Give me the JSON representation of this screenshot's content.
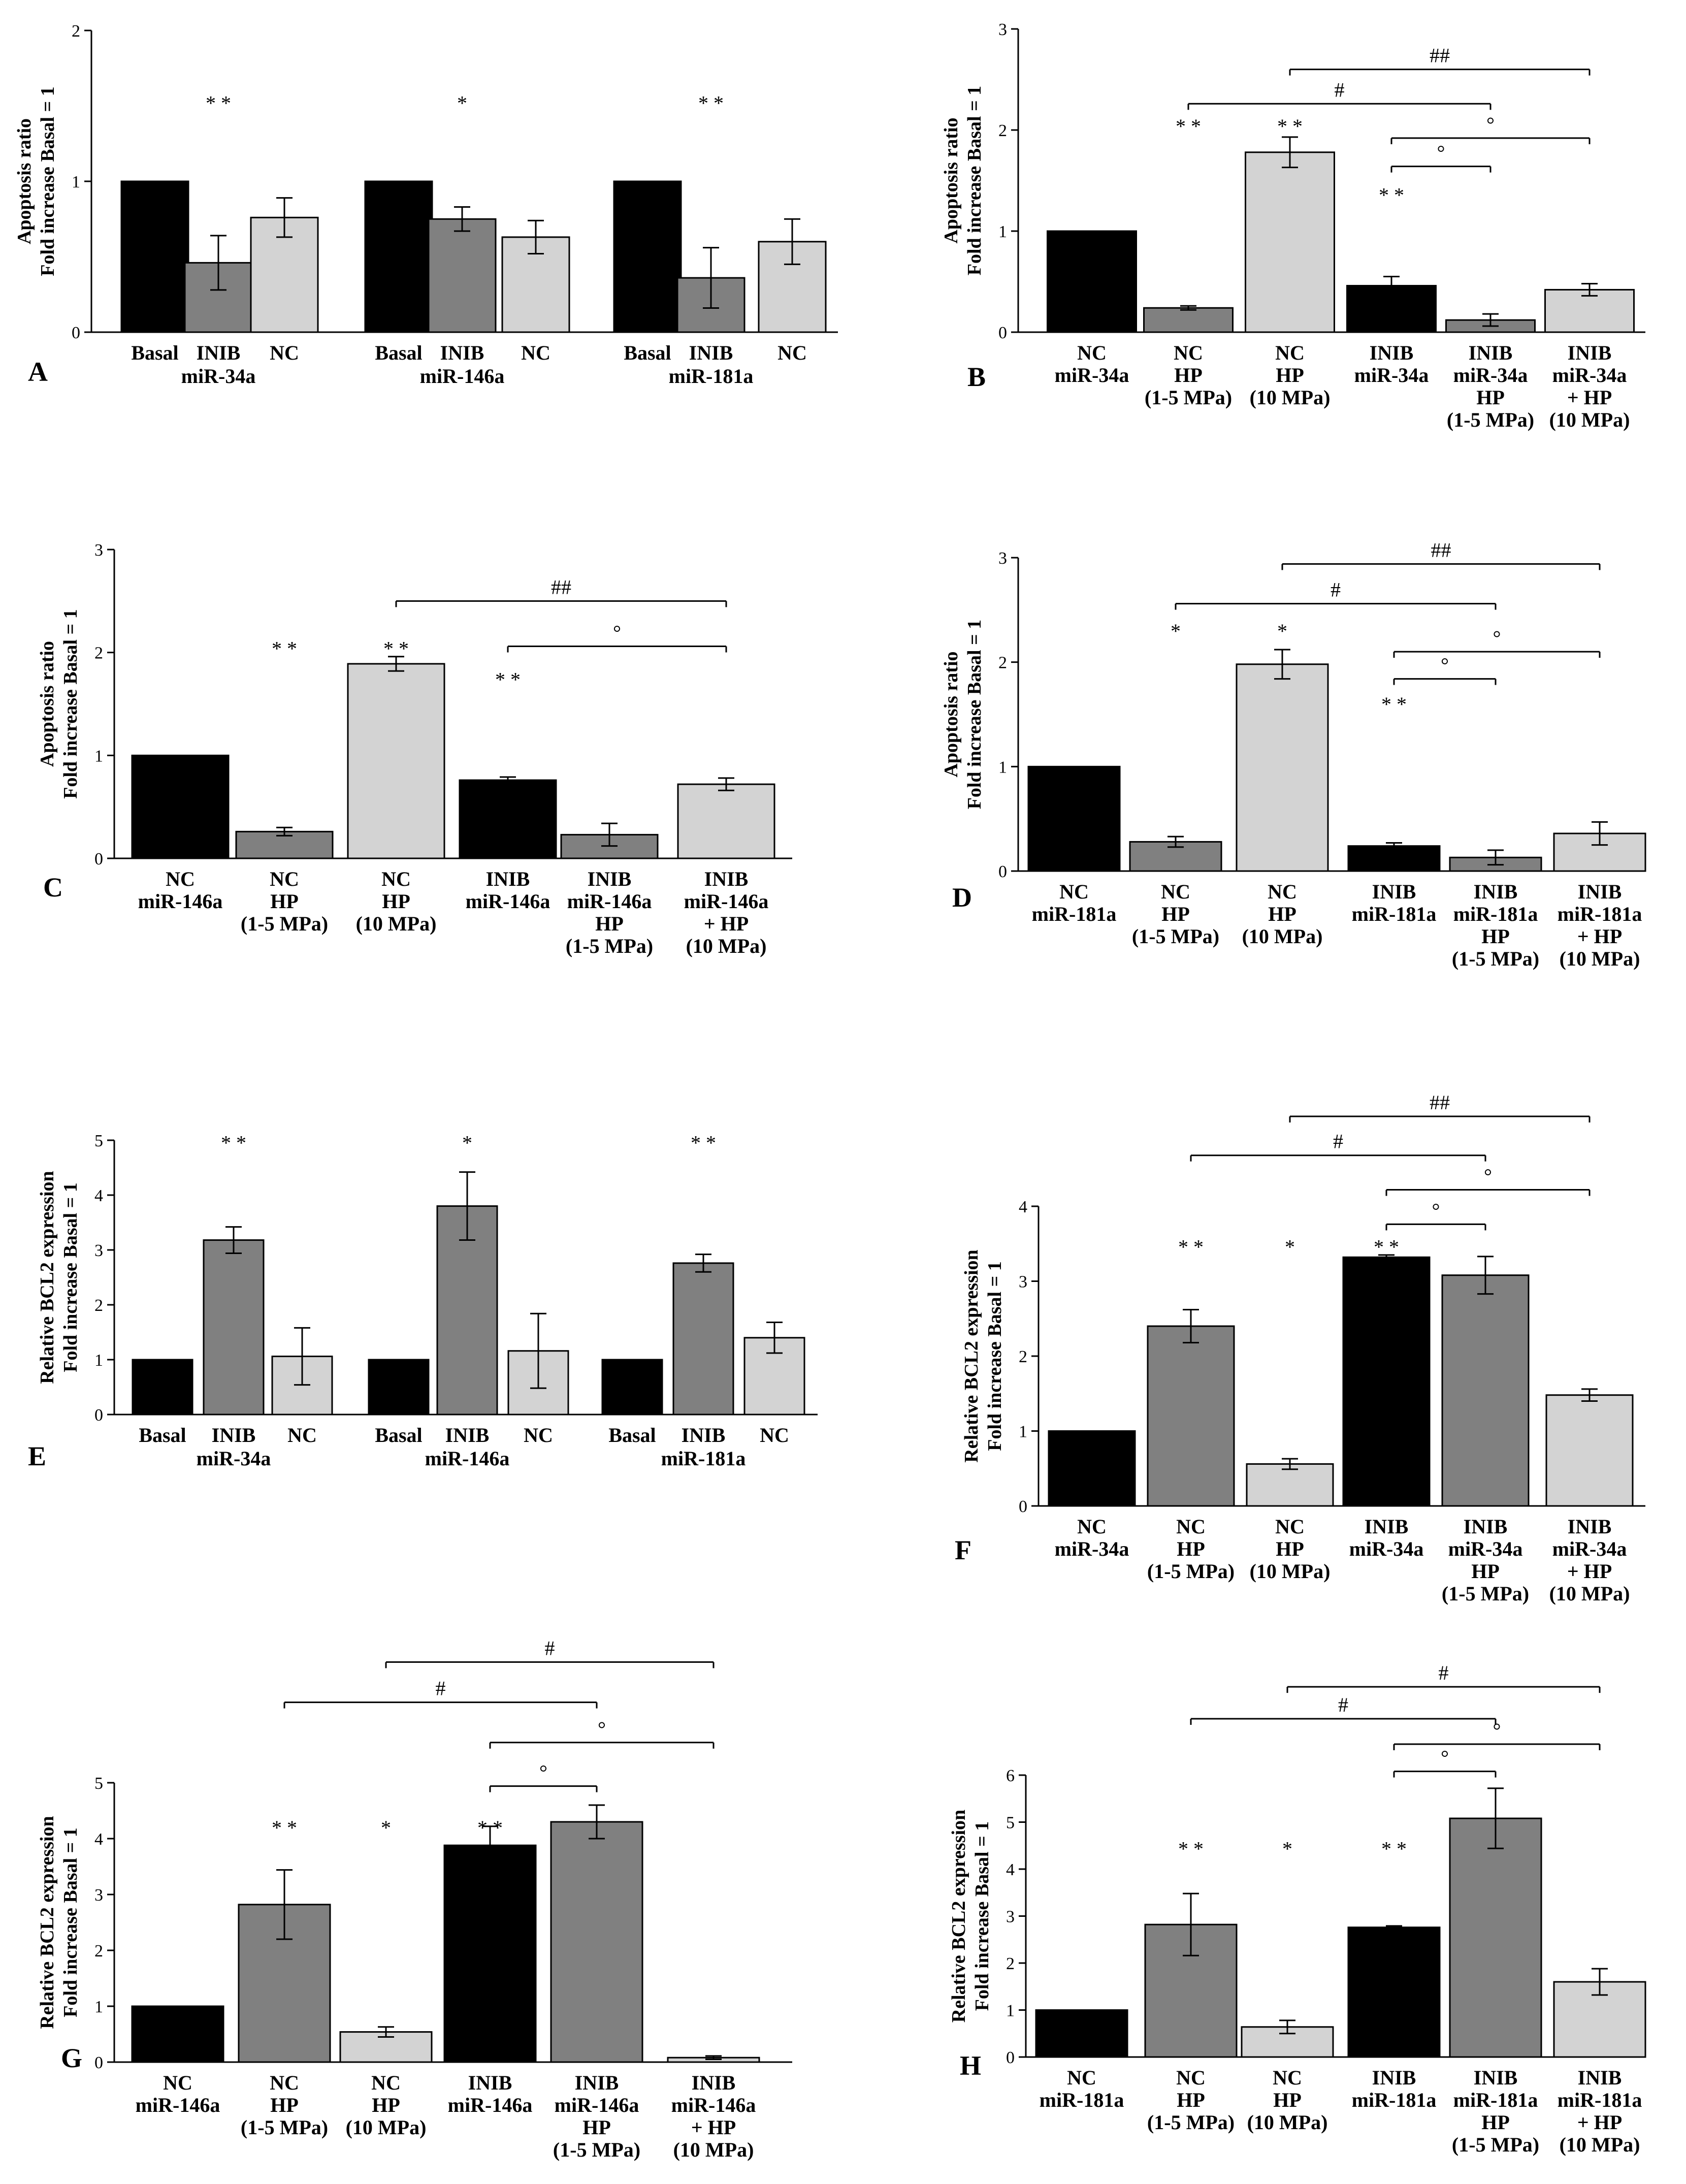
{
  "colors": {
    "black": "#000000",
    "dark_gray": "#808080",
    "light_gray": "#d3d3d3"
  },
  "chart_data": [
    {
      "type": "bar",
      "panel": "A",
      "ylabel_lines": [
        "Apoptosis ratio",
        "Fold increase Basal = 1"
      ],
      "ylim": [
        0,
        2
      ],
      "yticks": [
        0,
        1,
        2
      ],
      "bars": [
        {
          "value": 1.0,
          "error": 0,
          "color": "black",
          "label": [
            "Basal"
          ]
        },
        {
          "value": 0.46,
          "error": 0.18,
          "color": "dark_gray",
          "label": [
            "INIB"
          ]
        },
        {
          "value": 0.76,
          "error": 0.13,
          "color": "light_gray",
          "label": [
            "NC"
          ]
        },
        {
          "value": 1.0,
          "error": 0,
          "color": "black",
          "label": [
            "Basal"
          ]
        },
        {
          "value": 0.75,
          "error": 0.08,
          "color": "dark_gray",
          "label": [
            "INIB"
          ]
        },
        {
          "value": 0.63,
          "error": 0.11,
          "color": "light_gray",
          "label": [
            "NC"
          ]
        },
        {
          "value": 1.0,
          "error": 0,
          "color": "black",
          "label": [
            "Basal"
          ]
        },
        {
          "value": 0.36,
          "error": 0.2,
          "color": "dark_gray",
          "label": [
            "INIB"
          ]
        },
        {
          "value": 0.6,
          "error": 0.15,
          "color": "light_gray",
          "label": [
            "NC"
          ]
        }
      ],
      "group_labels": [
        {
          "text": "miR-34a",
          "bar": 1
        },
        {
          "text": "miR-146a",
          "bar": 4
        },
        {
          "text": "miR-181a",
          "bar": 7
        }
      ],
      "significance": [
        {
          "bar": 1,
          "y": 1.52,
          "text": "* *"
        },
        {
          "bar": 4,
          "y": 1.52,
          "text": "*"
        },
        {
          "bar": 7,
          "y": 1.52,
          "text": "* *"
        }
      ],
      "brackets": []
    },
    {
      "type": "bar",
      "panel": "B",
      "ylabel_lines": [
        "Apoptosis ratio",
        "Fold increase Basal = 1"
      ],
      "ylim": [
        0,
        3
      ],
      "yticks": [
        0,
        1,
        2,
        3
      ],
      "bars": [
        {
          "value": 1.0,
          "error": 0,
          "color": "black",
          "label": [
            "NC",
            "miR-34a"
          ]
        },
        {
          "value": 0.24,
          "error": 0.02,
          "color": "dark_gray",
          "label": [
            "NC",
            "HP",
            "(1-5 MPa)"
          ]
        },
        {
          "value": 1.78,
          "error": 0.15,
          "color": "light_gray",
          "label": [
            "NC",
            "HP",
            "(10 MPa)"
          ]
        },
        {
          "value": 0.46,
          "error": 0.09,
          "color": "black",
          "label": [
            "INIB",
            "miR-34a"
          ]
        },
        {
          "value": 0.12,
          "error": 0.06,
          "color": "dark_gray",
          "label": [
            "INIB",
            "miR-34a",
            "HP",
            "(1-5 MPa)"
          ]
        },
        {
          "value": 0.42,
          "error": 0.06,
          "color": "light_gray",
          "label": [
            "INIB",
            "miR-34a",
            "+ HP",
            "(10 MPa)"
          ]
        }
      ],
      "group_labels": [],
      "significance": [
        {
          "bar": 1,
          "y": 2.04,
          "text": "* *"
        },
        {
          "bar": 2,
          "y": 2.04,
          "text": "* *"
        },
        {
          "bar": 3,
          "y": 1.36,
          "text": "* *"
        }
      ],
      "brackets": [
        {
          "from": 1,
          "to": 4,
          "y": 2.26,
          "text": "#"
        },
        {
          "from": 2,
          "to": 5,
          "y": 2.6,
          "text": "##"
        },
        {
          "from": 3,
          "to": 4,
          "y": 1.64,
          "text": "°"
        },
        {
          "from": 3,
          "to": 5,
          "y": 1.92,
          "text": "°"
        }
      ]
    },
    {
      "type": "bar",
      "panel": "C",
      "ylabel_lines": [
        "Apoptosis ratio",
        "Fold increase Basal = 1"
      ],
      "ylim": [
        0,
        3
      ],
      "yticks": [
        0,
        1,
        2,
        3
      ],
      "bars": [
        {
          "value": 1.0,
          "error": 0,
          "color": "black",
          "label": [
            "NC",
            "miR-146a"
          ]
        },
        {
          "value": 0.26,
          "error": 0.04,
          "color": "dark_gray",
          "label": [
            "NC",
            "HP",
            "(1-5 MPa)"
          ]
        },
        {
          "value": 1.89,
          "error": 0.07,
          "color": "light_gray",
          "label": [
            "NC",
            "HP",
            "(10 MPa)"
          ]
        },
        {
          "value": 0.76,
          "error": 0.03,
          "color": "black",
          "label": [
            "INIB",
            "miR-146a"
          ]
        },
        {
          "value": 0.23,
          "error": 0.11,
          "color": "dark_gray",
          "label": [
            "INIB",
            "miR-146a",
            "HP",
            "(1-5 MPa)"
          ]
        },
        {
          "value": 0.72,
          "error": 0.06,
          "color": "light_gray",
          "label": [
            "INIB",
            "miR-146a",
            "+ HP",
            "(10 MPa)"
          ]
        }
      ],
      "group_labels": [],
      "significance": [
        {
          "bar": 1,
          "y": 2.04,
          "text": "* *"
        },
        {
          "bar": 2,
          "y": 2.04,
          "text": "* *"
        },
        {
          "bar": 3,
          "y": 1.74,
          "text": "* *"
        }
      ],
      "brackets": [
        {
          "from": 3,
          "to": 5,
          "y": 2.06,
          "text": "°"
        },
        {
          "from": 2,
          "to": 5,
          "y": 2.5,
          "text": "##"
        }
      ]
    },
    {
      "type": "bar",
      "panel": "D",
      "ylabel_lines": [
        "Apoptosis ratio",
        "Fold increase Basal = 1"
      ],
      "ylim": [
        0,
        3
      ],
      "yticks": [
        0,
        1,
        2,
        3
      ],
      "bars": [
        {
          "value": 1.0,
          "error": 0,
          "color": "black",
          "label": [
            "NC",
            "miR-181a"
          ]
        },
        {
          "value": 0.28,
          "error": 0.05,
          "color": "dark_gray",
          "label": [
            "NC",
            "HP",
            "(1-5 MPa)"
          ]
        },
        {
          "value": 1.98,
          "error": 0.14,
          "color": "light_gray",
          "label": [
            "NC",
            "HP",
            "(10 MPa)"
          ]
        },
        {
          "value": 0.24,
          "error": 0.03,
          "color": "black",
          "label": [
            "INIB",
            "miR-181a"
          ]
        },
        {
          "value": 0.13,
          "error": 0.07,
          "color": "dark_gray",
          "label": [
            "INIB",
            "miR-181a",
            "HP",
            "(1-5 MPa)"
          ]
        },
        {
          "value": 0.36,
          "error": 0.11,
          "color": "light_gray",
          "label": [
            "INIB",
            "miR-181a",
            "+ HP",
            "(10 MPa)"
          ]
        }
      ],
      "group_labels": [],
      "significance": [
        {
          "bar": 1,
          "y": 2.3,
          "text": "*"
        },
        {
          "bar": 2,
          "y": 2.3,
          "text": "*"
        },
        {
          "bar": 3,
          "y": 1.6,
          "text": "* *"
        }
      ],
      "brackets": [
        {
          "from": 1,
          "to": 4,
          "y": 2.56,
          "text": "#"
        },
        {
          "from": 2,
          "to": 5,
          "y": 2.94,
          "text": "##"
        },
        {
          "from": 3,
          "to": 4,
          "y": 1.84,
          "text": "°"
        },
        {
          "from": 3,
          "to": 5,
          "y": 2.1,
          "text": "°"
        }
      ]
    },
    {
      "type": "bar",
      "panel": "E",
      "ylabel_lines": [
        "Relative BCL2 expression",
        "Fold increase Basal = 1"
      ],
      "ylim": [
        0,
        5
      ],
      "yticks": [
        0,
        1,
        2,
        3,
        4,
        5
      ],
      "bars": [
        {
          "value": 1.0,
          "error": 0,
          "color": "black",
          "label": [
            "Basal"
          ]
        },
        {
          "value": 3.18,
          "error": 0.24,
          "color": "dark_gray",
          "label": [
            "INIB"
          ]
        },
        {
          "value": 1.06,
          "error": 0.52,
          "color": "light_gray",
          "label": [
            "NC"
          ]
        },
        {
          "value": 1.0,
          "error": 0,
          "color": "black",
          "label": [
            "Basal"
          ]
        },
        {
          "value": 3.8,
          "error": 0.62,
          "color": "dark_gray",
          "label": [
            "INIB"
          ]
        },
        {
          "value": 1.16,
          "error": 0.68,
          "color": "light_gray",
          "label": [
            "NC"
          ]
        },
        {
          "value": 1.0,
          "error": 0,
          "color": "black",
          "label": [
            "Basal"
          ]
        },
        {
          "value": 2.76,
          "error": 0.16,
          "color": "dark_gray",
          "label": [
            "INIB"
          ]
        },
        {
          "value": 1.4,
          "error": 0.28,
          "color": "light_gray",
          "label": [
            "NC"
          ]
        }
      ],
      "group_labels": [
        {
          "text": "miR-34a",
          "bar": 1
        },
        {
          "text": "miR-146a",
          "bar": 4
        },
        {
          "text": "miR-181a",
          "bar": 7
        }
      ],
      "significance": [
        {
          "bar": 1,
          "y": 4.96,
          "text": "* *"
        },
        {
          "bar": 4,
          "y": 4.96,
          "text": "*"
        },
        {
          "bar": 7,
          "y": 4.96,
          "text": "* *"
        }
      ],
      "brackets": []
    },
    {
      "type": "bar",
      "panel": "F",
      "ylabel_lines": [
        "Relative BCL2 expression",
        "Fold increase Basal = 1"
      ],
      "ylim": [
        0,
        4
      ],
      "yticks": [
        0,
        1,
        2,
        3,
        4
      ],
      "bars": [
        {
          "value": 1.0,
          "error": 0,
          "color": "black",
          "label": [
            "NC",
            "miR-34a"
          ]
        },
        {
          "value": 2.4,
          "error": 0.22,
          "color": "dark_gray",
          "label": [
            "NC",
            "HP",
            "(1-5 MPa)"
          ]
        },
        {
          "value": 0.56,
          "error": 0.07,
          "color": "light_gray",
          "label": [
            "NC",
            "HP",
            "(10 MPa)"
          ]
        },
        {
          "value": 3.32,
          "error": 0.03,
          "color": "black",
          "label": [
            "INIB",
            "miR-34a"
          ]
        },
        {
          "value": 3.08,
          "error": 0.25,
          "color": "dark_gray",
          "label": [
            "INIB",
            "miR-34a",
            "HP",
            "(1-5 MPa)"
          ]
        },
        {
          "value": 1.48,
          "error": 0.08,
          "color": "light_gray",
          "label": [
            "INIB",
            "miR-34a",
            "+ HP",
            "(10 MPa)"
          ]
        }
      ],
      "group_labels": [],
      "significance": [
        {
          "bar": 1,
          "y": 3.46,
          "text": "* *"
        },
        {
          "bar": 2,
          "y": 3.46,
          "text": "*"
        },
        {
          "bar": 3,
          "y": 3.46,
          "text": "* *"
        }
      ],
      "brackets": [
        {
          "from": 3,
          "to": 4,
          "y": 3.76,
          "text": "°"
        },
        {
          "from": 3,
          "to": 5,
          "y": 4.22,
          "text": "°"
        },
        {
          "from": 1,
          "to": 4,
          "y": 4.68,
          "text": "#"
        },
        {
          "from": 2,
          "to": 5,
          "y": 5.2,
          "text": "##"
        }
      ]
    },
    {
      "type": "bar",
      "panel": "G",
      "ylabel_lines": [
        "Relative BCL2 expression",
        "Fold increase Basal = 1"
      ],
      "ylim": [
        0,
        5
      ],
      "yticks": [
        0,
        1,
        2,
        3,
        4,
        5
      ],
      "bars": [
        {
          "value": 1.0,
          "error": 0,
          "color": "black",
          "label": [
            "NC",
            "miR-146a"
          ]
        },
        {
          "value": 2.82,
          "error": 0.62,
          "color": "dark_gray",
          "label": [
            "NC",
            "HP",
            "(1-5 MPa)"
          ]
        },
        {
          "value": 0.54,
          "error": 0.09,
          "color": "light_gray",
          "label": [
            "NC",
            "HP",
            "(10 MPa)"
          ]
        },
        {
          "value": 3.88,
          "error": 0.34,
          "color": "black",
          "label": [
            "INIB",
            "miR-146a"
          ]
        },
        {
          "value": 4.3,
          "error": 0.3,
          "color": "dark_gray",
          "label": [
            "INIB",
            "miR-146a",
            "HP",
            "(1-5 MPa)"
          ]
        },
        {
          "value": 0.08,
          "error": 0.03,
          "color": "light_gray",
          "label": [
            "INIB",
            "miR-146a",
            "+ HP",
            "(10 MPa)"
          ]
        }
      ],
      "group_labels": [],
      "significance": [
        {
          "bar": 1,
          "y": 4.2,
          "text": "* *"
        },
        {
          "bar": 2,
          "y": 4.2,
          "text": "*"
        },
        {
          "bar": 3,
          "y": 4.2,
          "text": "* *"
        }
      ],
      "brackets": [
        {
          "from": 3,
          "to": 4,
          "y": 4.94,
          "text": "°"
        },
        {
          "from": 3,
          "to": 5,
          "y": 5.72,
          "text": "°"
        },
        {
          "from": 1,
          "to": 4,
          "y": 6.44,
          "text": "#"
        },
        {
          "from": 2,
          "to": 5,
          "y": 7.16,
          "text": "#"
        }
      ]
    },
    {
      "type": "bar",
      "panel": "H",
      "ylabel_lines": [
        "Relative BCL2 expression",
        "Fold increase Basal = 1"
      ],
      "ylim": [
        0,
        6
      ],
      "yticks": [
        0,
        1,
        2,
        3,
        4,
        5,
        6
      ],
      "bars": [
        {
          "value": 1.0,
          "error": 0,
          "color": "black",
          "label": [
            "NC",
            "miR-181a"
          ]
        },
        {
          "value": 2.82,
          "error": 0.66,
          "color": "dark_gray",
          "label": [
            "NC",
            "HP",
            "(1-5 MPa)"
          ]
        },
        {
          "value": 0.64,
          "error": 0.14,
          "color": "light_gray",
          "label": [
            "NC",
            "HP",
            "(10 MPa)"
          ]
        },
        {
          "value": 2.76,
          "error": 0.03,
          "color": "black",
          "label": [
            "INIB",
            "miR-181a"
          ]
        },
        {
          "value": 5.08,
          "error": 0.64,
          "color": "dark_gray",
          "label": [
            "INIB",
            "miR-181a",
            "HP",
            "(1-5 MPa)"
          ]
        },
        {
          "value": 1.6,
          "error": 0.28,
          "color": "light_gray",
          "label": [
            "INIB",
            "miR-181a",
            "+ HP",
            "(10 MPa)"
          ]
        }
      ],
      "group_labels": [],
      "significance": [
        {
          "bar": 1,
          "y": 4.44,
          "text": "* *"
        },
        {
          "bar": 2,
          "y": 4.44,
          "text": "*"
        },
        {
          "bar": 3,
          "y": 4.44,
          "text": "* *"
        }
      ],
      "brackets": [
        {
          "from": 3,
          "to": 4,
          "y": 6.08,
          "text": "°"
        },
        {
          "from": 3,
          "to": 5,
          "y": 6.66,
          "text": "°"
        },
        {
          "from": 1,
          "to": 4,
          "y": 7.2,
          "text": "#"
        },
        {
          "from": 2,
          "to": 5,
          "y": 7.88,
          "text": "#"
        }
      ]
    }
  ]
}
